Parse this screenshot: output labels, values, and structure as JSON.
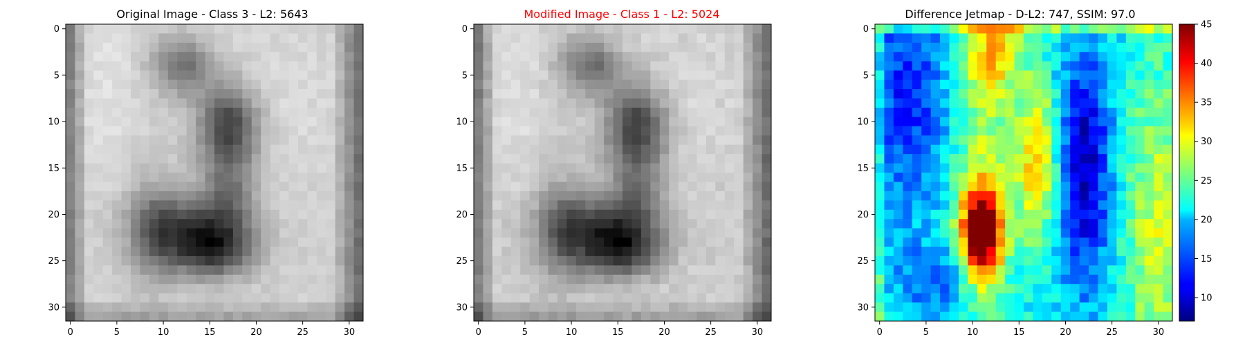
{
  "panels": [
    {
      "title": "Original Image - Class 3 - L2: 5643",
      "title_color": "#000000"
    },
    {
      "title": "Modified Image - Class 1 - L2: 5024",
      "title_color": "#ff0000"
    },
    {
      "title": "Difference Jetmap - D-L2: 747, SSIM: 97.0",
      "title_color": "#000000"
    }
  ],
  "chart_data": [
    {
      "type": "heatmap",
      "colormap": "gray",
      "grid_size": 32,
      "xlim": [
        -0.5,
        31.5
      ],
      "ylim": [
        31.5,
        -0.5
      ],
      "xticks": [
        0,
        5,
        10,
        15,
        20,
        25,
        30
      ],
      "yticks": [
        0,
        5,
        10,
        15,
        20,
        25,
        30
      ],
      "grid": false
    },
    {
      "type": "heatmap",
      "colormap": "gray",
      "grid_size": 32,
      "xlim": [
        -0.5,
        31.5
      ],
      "ylim": [
        31.5,
        -0.5
      ],
      "xticks": [
        0,
        5,
        10,
        15,
        20,
        25,
        30
      ],
      "yticks": [
        0,
        5,
        10,
        15,
        20,
        25,
        30
      ],
      "grid": false
    },
    {
      "type": "heatmap",
      "colormap": "jet",
      "grid_size": 32,
      "xlim": [
        -0.5,
        31.5
      ],
      "ylim": [
        31.5,
        -0.5
      ],
      "xticks": [
        0,
        5,
        10,
        15,
        20,
        25,
        30
      ],
      "yticks": [
        0,
        5,
        10,
        15,
        20,
        25,
        30
      ],
      "colorbar": {
        "min": 7,
        "max": 45,
        "ticks": [
          10,
          15,
          20,
          25,
          30,
          35,
          40,
          45
        ]
      },
      "grid": false
    }
  ]
}
